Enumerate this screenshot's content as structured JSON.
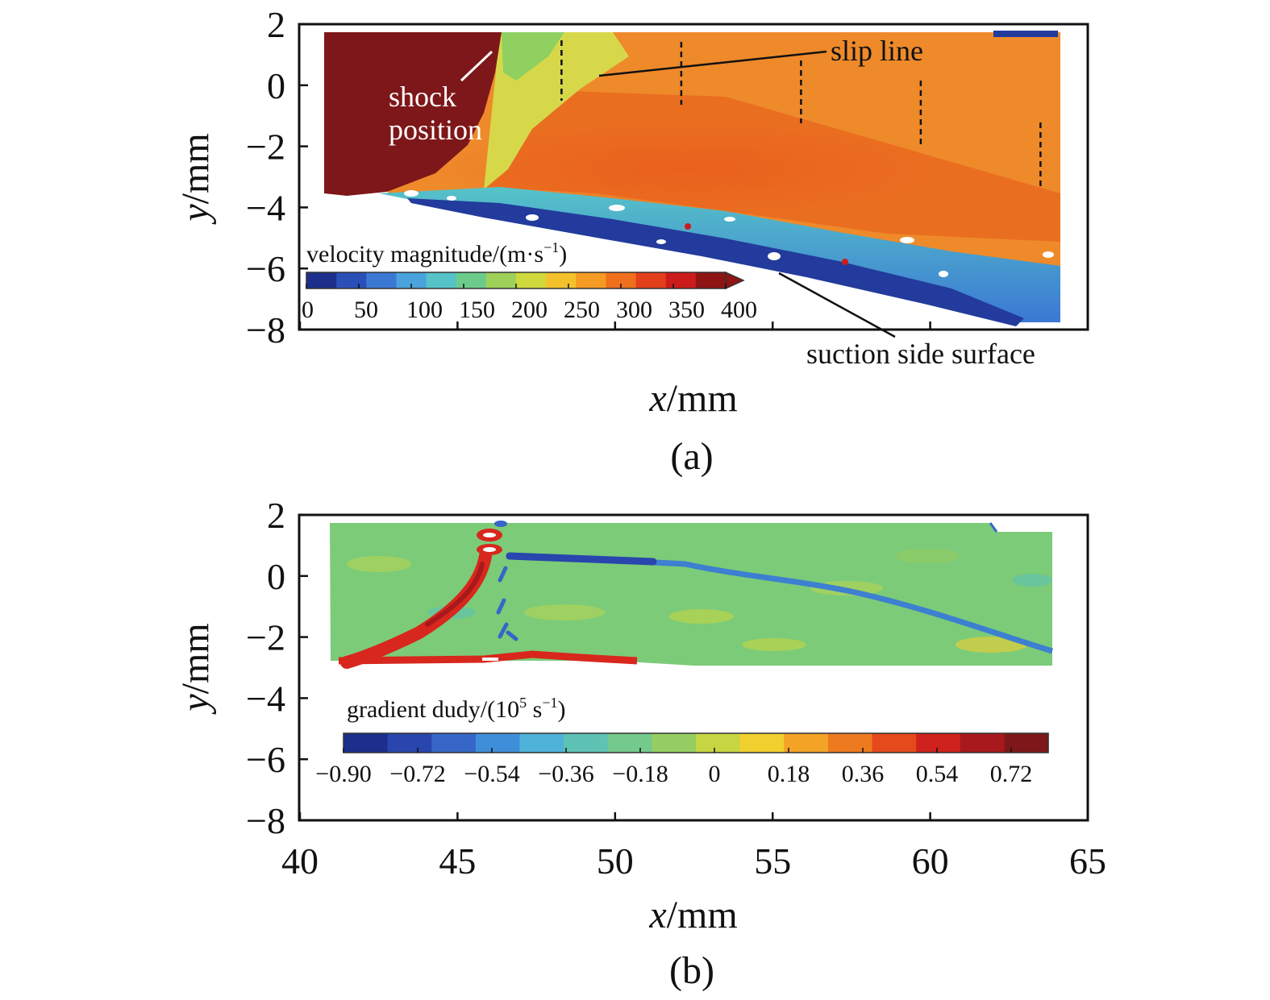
{
  "chart_data": [
    {
      "type": "heatmap",
      "panel_label": "(a)",
      "xlabel_var": "x",
      "xlabel_unit": "/mm",
      "ylabel_var": "y",
      "ylabel_unit": "/mm",
      "xlim": [
        40,
        65
      ],
      "ylim": [
        -8,
        2
      ],
      "y_ticks": [
        "2",
        "0",
        "−2",
        "−4",
        "−6",
        "−8"
      ],
      "y_tick_values": [
        2,
        0,
        -2,
        -4,
        -6,
        -8
      ],
      "x_tick_values": [
        40,
        45,
        50,
        55,
        60,
        65
      ],
      "colorbar": {
        "label_main": "velocity magnitude/(m·s",
        "label_sup": "−1",
        "label_end": ")",
        "tick_labels": [
          "0",
          "50",
          "100",
          "150",
          "200",
          "250",
          "300",
          "350",
          "400"
        ],
        "tick_values": [
          0,
          50,
          100,
          150,
          200,
          250,
          300,
          350,
          400
        ],
        "range": [
          0,
          400
        ],
        "colors": [
          "#1c2f8c",
          "#2a4fb8",
          "#3b78d4",
          "#4aa3dc",
          "#56c3c8",
          "#6ccb8a",
          "#9fd15a",
          "#cfd83c",
          "#f3c12c",
          "#f59a22",
          "#ef6f1c",
          "#e23f1a",
          "#cc1b1b",
          "#8f1414"
        ]
      },
      "annotations": {
        "shock_line1": "shock",
        "shock_line2": "position",
        "slip_line": "slip line",
        "suction": "suction side surface"
      },
      "slip_line_markers_x": [
        48.3,
        52.1,
        55.9,
        59.7,
        63.5
      ],
      "colors": {
        "shock_region": "#7e1719",
        "freestream": "#ee8a2a",
        "wall_layer": "#233f9e",
        "transition": "#46b2c8"
      }
    },
    {
      "type": "heatmap",
      "panel_label": "(b)",
      "xlabel_var": "x",
      "xlabel_unit": "/mm",
      "ylabel_var": "y",
      "ylabel_unit": "/mm",
      "xlim": [
        40,
        65
      ],
      "ylim": [
        -8,
        2
      ],
      "x_ticks": [
        "40",
        "45",
        "50",
        "55",
        "60",
        "65"
      ],
      "x_tick_values": [
        40,
        45,
        50,
        55,
        60,
        65
      ],
      "y_ticks": [
        "2",
        "0",
        "−2",
        "−4",
        "−6",
        "−8"
      ],
      "y_tick_values": [
        2,
        0,
        -2,
        -4,
        -6,
        -8
      ],
      "colorbar": {
        "label_main": "gradient dudy/(10",
        "label_sup1": "5",
        "label_mid": " s",
        "label_sup2": "−1",
        "label_end": ")",
        "tick_labels": [
          "−0.90",
          "−0.72",
          "−0.54",
          "−0.36",
          "−0.18",
          "0",
          "0.18",
          "0.36",
          "0.54",
          "0.72"
        ],
        "tick_values": [
          -0.9,
          -0.72,
          -0.54,
          -0.36,
          -0.18,
          0,
          0.18,
          0.36,
          0.54,
          0.72
        ],
        "range": [
          -0.9,
          0.81
        ],
        "colors": [
          "#1c2f8c",
          "#2846ad",
          "#3566c8",
          "#3f8ed9",
          "#4fb2d8",
          "#5ec2b4",
          "#74c98c",
          "#94ce62",
          "#c6d642",
          "#f0cf2e",
          "#f3a326",
          "#ee7a20",
          "#e44a1c",
          "#d0221c",
          "#a8191c",
          "#7e1719"
        ]
      },
      "colors": {
        "background": "#7ccb78",
        "shock_band": "#d8271d",
        "slip_band": "#3d7fd0"
      }
    }
  ]
}
